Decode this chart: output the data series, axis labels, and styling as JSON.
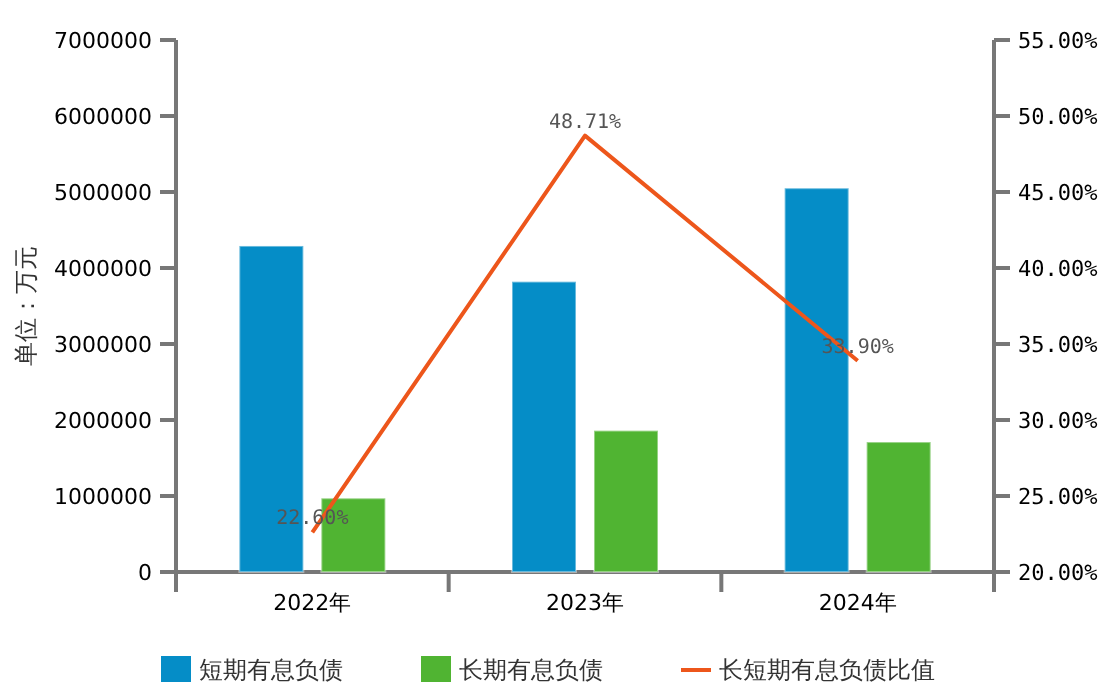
{
  "chart_data": {
    "type": "bar",
    "ylabel": "单位：万元",
    "categories": [
      "2022年",
      "2023年",
      "2024年"
    ],
    "series": [
      {
        "name": "短期有息负债",
        "color": "#058dc7",
        "values": [
          4290000,
          3820000,
          5050000
        ]
      },
      {
        "name": "长期有息负债",
        "color": "#50b432",
        "values": [
          970000,
          1860000,
          1710000
        ]
      },
      {
        "name": "长短期有息负债比值",
        "type": "line",
        "axis": "y2",
        "color": "#ed561b",
        "values": [
          22.6,
          48.71,
          33.9
        ],
        "value_labels": [
          "22.60%",
          "48.71%",
          "33.90%"
        ]
      }
    ],
    "ylim": [
      0,
      7000000
    ],
    "yticks": [
      0,
      1000000,
      2000000,
      3000000,
      4000000,
      5000000,
      6000000,
      7000000
    ],
    "y2lim": [
      20,
      55
    ],
    "y2ticks": [
      {
        "value": 20,
        "label": "20.00%"
      },
      {
        "value": 25,
        "label": "25.00%"
      },
      {
        "value": 30,
        "label": "30.00%"
      },
      {
        "value": 35,
        "label": "35.00%"
      },
      {
        "value": 40,
        "label": "40.00%"
      },
      {
        "value": 45,
        "label": "45.00%"
      },
      {
        "value": 50,
        "label": "50.00%"
      },
      {
        "value": 55,
        "label": "55.00%"
      }
    ],
    "grid": false,
    "legend": "bottom",
    "marker": "none"
  }
}
